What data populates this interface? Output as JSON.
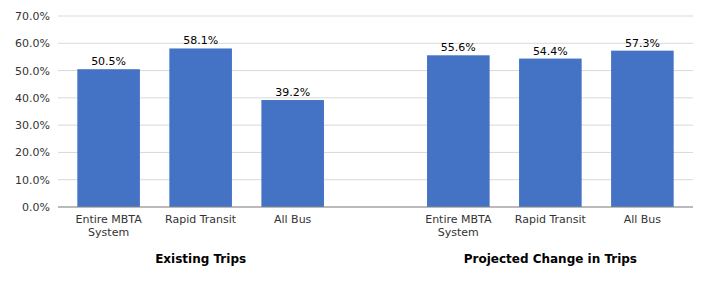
{
  "chart_data": {
    "type": "bar",
    "groups": [
      {
        "label": "Existing Trips",
        "categories": [
          "Entire MBTA\nSystem",
          "Rapid Transit",
          "All Bus"
        ],
        "values": [
          50.5,
          58.1,
          39.2
        ],
        "value_labels": [
          "50.5%",
          "58.1%",
          "39.2%"
        ]
      },
      {
        "label": "Projected Change in Trips",
        "categories": [
          "Entire MBTA\nSystem",
          "Rapid Transit",
          "All Bus"
        ],
        "values": [
          55.6,
          54.4,
          57.3
        ],
        "value_labels": [
          "55.6%",
          "54.4%",
          "57.3%"
        ]
      }
    ],
    "color": "#4472C4",
    "ylim": [
      0,
      70
    ],
    "yticks": [
      {
        "value": 0,
        "label": "0.0%"
      },
      {
        "value": 10,
        "label": "10.0%"
      },
      {
        "value": 20,
        "label": "20.0%"
      },
      {
        "value": 30,
        "label": "30.0%"
      },
      {
        "value": 40,
        "label": "40.0%"
      },
      {
        "value": 50,
        "label": "50.0%"
      },
      {
        "value": 60,
        "label": "60.0%"
      },
      {
        "value": 70,
        "label": "70.0%"
      }
    ],
    "grid": true,
    "data_labels": true
  }
}
